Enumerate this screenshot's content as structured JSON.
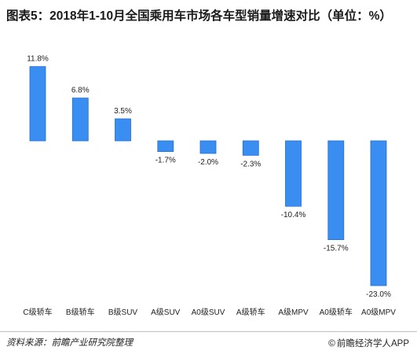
{
  "title": "图表5：2018年1-10月全国乘用车市场各车型销量增速对比（单位：%）",
  "footer": {
    "source": "资料来源：前瞻产业研究院整理",
    "brand_symbol": "©",
    "brand": "前瞻经济学人APP"
  },
  "colors": {
    "bar_fill": "#3b8ef1",
    "bar_stroke": "#1f6fd6"
  },
  "chart_data": {
    "type": "bar",
    "categories": [
      "C级轿车",
      "B级轿车",
      "B级SUV",
      "A级SUV",
      "A0级SUV",
      "A级轿车",
      "A级MPV",
      "A0级轿车",
      "A0级MPV"
    ],
    "values": [
      11.8,
      6.8,
      3.5,
      -1.7,
      -2.0,
      -2.3,
      -10.4,
      -15.7,
      -23.0
    ],
    "value_labels": [
      "11.8%",
      "6.8%",
      "3.5%",
      "-1.7%",
      "-2.0%",
      "-2.3%",
      "-10.4%",
      "-15.7%",
      "-23.0%"
    ],
    "ylim": [
      -23.0,
      11.8
    ],
    "grid": false,
    "legend": "none"
  }
}
